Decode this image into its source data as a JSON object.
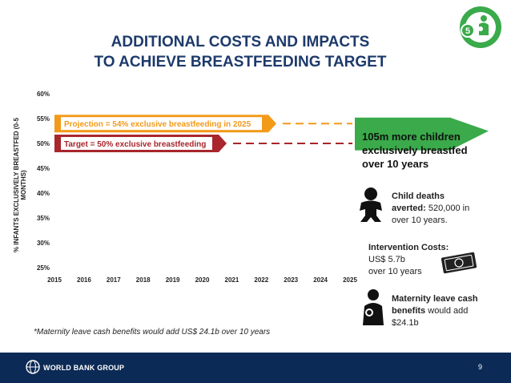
{
  "title": {
    "line1": "ADDITIONAL COSTS AND IMPACTS",
    "line2": "TO ACHIEVE BREASTFEEDING TARGET"
  },
  "logo": {
    "number": "5",
    "icon": "mother-baby-icon",
    "color": "#3aaa4a"
  },
  "colors": {
    "projection": "#f39a1a",
    "target": "#a8262c",
    "green": "#3aaa4a",
    "title": "#1d3a6b",
    "footer": "#0b2a55"
  },
  "chart_data": {
    "type": "bar",
    "orientation": "horizontal",
    "ylabel": "% INFANTS EXCLUSIVELY BREASTFED (0-5 MONTHS)",
    "xlim": [
      2015,
      2025
    ],
    "ylim": [
      25,
      60
    ],
    "x_ticks": [
      "2015",
      "2016",
      "2017",
      "2018",
      "2019",
      "2020",
      "2021",
      "2022",
      "2023",
      "2024",
      "2025"
    ],
    "y_ticks": [
      "25%",
      "30%",
      "35%",
      "40%",
      "45%",
      "50%",
      "55%",
      "60%"
    ],
    "grid": false,
    "series": [
      {
        "name": "Projection = 54% exclusive breastfeeding in 2025",
        "value": 54,
        "color": "#f39a1a"
      },
      {
        "name": "Target = 50% exclusive breastfeeding",
        "value": 50,
        "color": "#a8262c"
      }
    ]
  },
  "green_box": {
    "line1": "105m more children",
    "line2": "exclusively breastfed",
    "line3": "over 10 years"
  },
  "child_deaths": {
    "bold": "Child deaths averted:",
    "text": " 520,000 in over 10 years.",
    "icon": "baby-icon"
  },
  "intervention": {
    "bold": "Intervention Costs:",
    "line2": "US$ 5.7b",
    "line3": "over 10 years",
    "icon": "money-icon"
  },
  "maternity": {
    "bold": "Maternity leave cash benefits",
    "text": " would add $24.1b",
    "icon": "mother-baby-icon"
  },
  "note": "*Maternity leave cash benefits would add US$ 24.1b  over 10 years",
  "footer": {
    "brand": "WORLD BANK GROUP",
    "page": "9",
    "icon": "globe-icon"
  }
}
